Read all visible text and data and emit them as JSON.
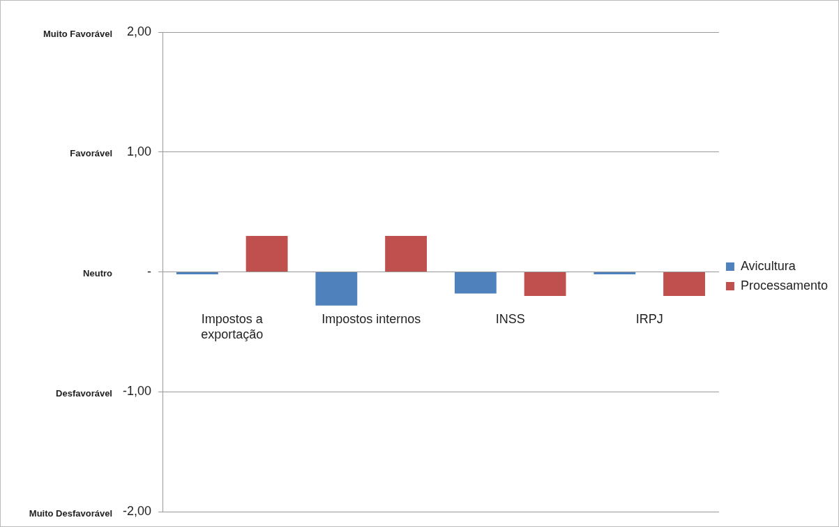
{
  "chart_data": {
    "type": "bar",
    "categories": [
      "Impostos a exportação",
      "Impostos internos",
      "INSS",
      "IRPJ"
    ],
    "series": [
      {
        "name": "Avicultura",
        "color": "#4f81bd",
        "values": [
          -0.02,
          -0.28,
          -0.18,
          -0.02
        ]
      },
      {
        "name": "Processamento",
        "color": "#c0504d",
        "values": [
          0.3,
          0.3,
          -0.2,
          -0.2
        ]
      }
    ],
    "ylim": [
      -2,
      2
    ],
    "yticks": [
      {
        "value": 2,
        "label": "2,00"
      },
      {
        "value": 1,
        "label": "1,00"
      },
      {
        "value": 0,
        "label": "-"
      },
      {
        "value": -1,
        "label": "-1,00"
      },
      {
        "value": -2,
        "label": "-2,00"
      }
    ],
    "annotations": [
      "Muito Favorável",
      "Favorável",
      "Neutro",
      "Desfavorável",
      "Muito Desfavorável"
    ],
    "grid": "y",
    "legend": "right"
  }
}
